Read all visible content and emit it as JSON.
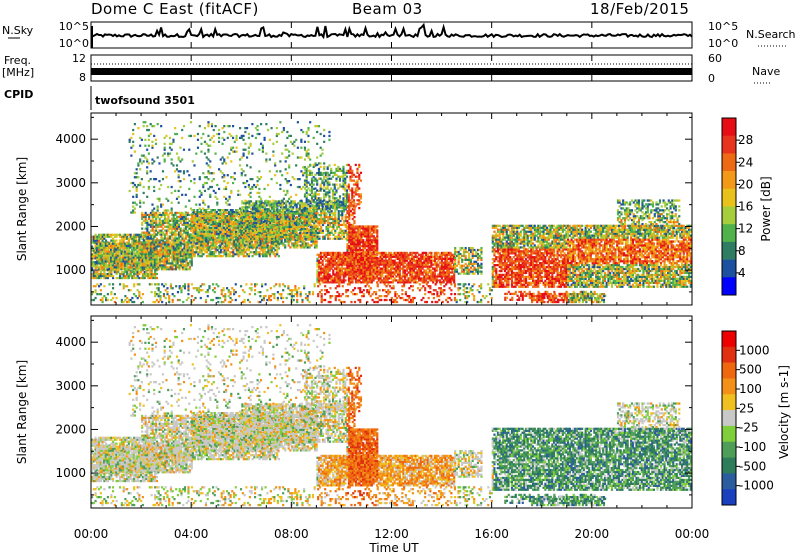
{
  "header": {
    "station": "Dome C East (fitACF)",
    "beam": "Beam 03",
    "date": "18/Feb/2015"
  },
  "nsky_panel": {
    "left_label": "N.Sky",
    "left_ticks": [
      "10^5",
      "10^0"
    ],
    "right_label": "N.Search",
    "right_ticks": [
      "10^5",
      "10^0"
    ]
  },
  "freq_panel": {
    "left_label": "Freq.",
    "left_unit": "[MHz]",
    "left_ticks": [
      "12",
      "8"
    ],
    "right_label": "Nave",
    "right_ticks": [
      "60",
      "0"
    ]
  },
  "cpid_panel": {
    "label": "CPID",
    "program": "twofsound 3501"
  },
  "chart_data": [
    {
      "type": "heatmap",
      "name": "power",
      "ylabel": "Slant Range [km]",
      "ylim": [
        200,
        4600
      ],
      "yticks": [
        1000,
        2000,
        3000,
        4000
      ],
      "colorbar_label": "Power [dB]",
      "colorbar_ticks": [
        "28",
        "24",
        "20",
        "16",
        "12",
        "8",
        "4"
      ],
      "colorbar_colors": [
        "#0000ff",
        "#1e50a0",
        "#2e7d63",
        "#4fb24a",
        "#a6cd3c",
        "#e8c21a",
        "#f29a18",
        "#ef6a14",
        "#e8341c",
        "#e60e14"
      ],
      "grid": false
    },
    {
      "type": "heatmap",
      "name": "velocity",
      "ylabel": "Slant Range [km]",
      "ylim": [
        200,
        4600
      ],
      "yticks": [
        1000,
        2000,
        3000,
        4000
      ],
      "colorbar_label": "Velocity [m s-1]",
      "colorbar_ticks": [
        "1000",
        "500",
        "100",
        "25",
        "-25",
        "-100",
        "-500",
        "-1000"
      ],
      "colorbar_colors": [
        "#1a3fbf",
        "#2b5d9e",
        "#2e7d5a",
        "#4e9e5a",
        "#7fcf3a",
        "#c8c8c8",
        "#f0c020",
        "#f29018",
        "#ef6810",
        "#e03010",
        "#ee0000"
      ],
      "grid": false
    }
  ],
  "time_axis": {
    "label": "Time UT",
    "ticks": [
      "00:00",
      "04:00",
      "08:00",
      "12:00",
      "16:00",
      "20:00",
      "00:00"
    ]
  },
  "colors": {
    "frame": "#000000",
    "background": "#ffffff"
  }
}
